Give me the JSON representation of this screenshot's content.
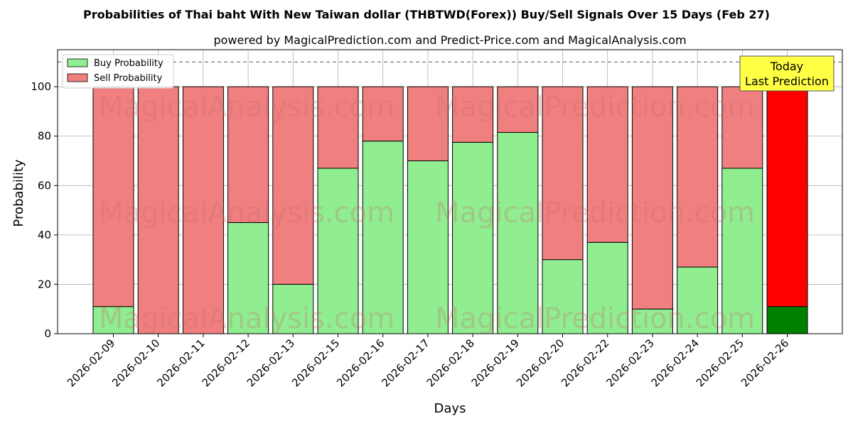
{
  "colors": {
    "buy": "#90ee90",
    "sell": "#f08080",
    "today_buy": "#008000",
    "today_sell": "#ff0000",
    "today_box": "#ffff44"
  },
  "watermarks": [
    "MagicalAnalysis.com",
    "MagicalPrediction.com"
  ],
  "today_box": {
    "line1": "Today",
    "line2": "Last Prediction"
  },
  "chart_data": {
    "type": "bar",
    "stacked": true,
    "title": "Probabilities of Thai baht With New Taiwan dollar (THBTWD(Forex)) Buy/Sell Signals Over 15 Days (Feb 27)",
    "subtitle": "powered by MagicalPrediction.com and Predict-Price.com and MagicalAnalysis.com",
    "xlabel": "Days",
    "ylabel": "Probability",
    "ylim": [
      0,
      115
    ],
    "yticks": [
      0,
      20,
      40,
      60,
      80,
      100
    ],
    "grid": true,
    "legend_position": "top-left",
    "reference_line": 110,
    "categories": [
      "2026-02-09",
      "2026-02-10",
      "2026-02-11",
      "2026-02-12",
      "2026-02-13",
      "2026-02-15",
      "2026-02-16",
      "2026-02-17",
      "2026-02-18",
      "2026-02-19",
      "2026-02-20",
      "2026-02-22",
      "2026-02-23",
      "2026-02-24",
      "2026-02-25",
      "2026-02-26"
    ],
    "series": [
      {
        "name": "Buy Probability",
        "values": [
          11,
          0,
          0,
          45,
          20,
          67,
          78,
          70,
          77.5,
          81.5,
          30,
          37,
          10,
          27,
          67,
          11
        ]
      },
      {
        "name": "Sell Probability",
        "values": [
          89,
          100,
          100,
          55,
          80,
          33,
          22,
          30,
          22.5,
          18.5,
          70,
          63,
          90,
          73,
          33,
          89
        ]
      }
    ]
  }
}
